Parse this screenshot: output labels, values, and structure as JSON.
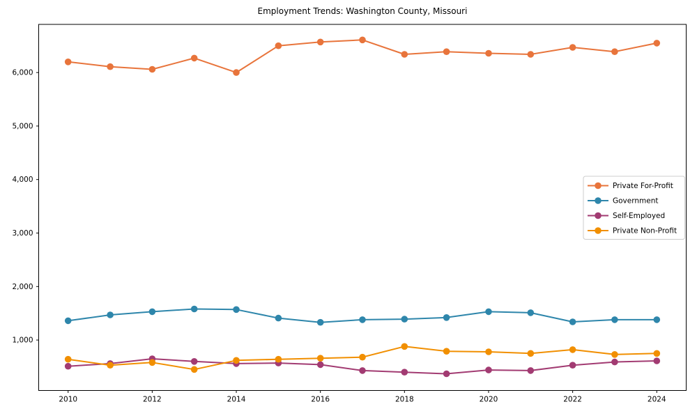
{
  "title": "Employment Trends: Washington County, Missouri",
  "chart_data": {
    "type": "line",
    "title": "Employment Trends: Washington County, Missouri",
    "xlabel": "",
    "ylabel": "",
    "x": [
      2010,
      2011,
      2012,
      2013,
      2014,
      2015,
      2016,
      2017,
      2018,
      2019,
      2020,
      2021,
      2022,
      2023,
      2024
    ],
    "series": [
      {
        "name": "Private For-Profit",
        "color": "#E8743B",
        "values": [
          6200,
          6110,
          6060,
          6270,
          6000,
          6500,
          6570,
          6610,
          6340,
          6390,
          6360,
          6340,
          6470,
          6390,
          6550
        ]
      },
      {
        "name": "Government",
        "color": "#2E86AB",
        "values": [
          1360,
          1470,
          1530,
          1580,
          1570,
          1410,
          1330,
          1380,
          1390,
          1420,
          1530,
          1510,
          1340,
          1380,
          1380
        ]
      },
      {
        "name": "Self-Employed",
        "color": "#A23B72",
        "values": [
          510,
          560,
          650,
          600,
          560,
          570,
          540,
          430,
          400,
          370,
          440,
          430,
          530,
          590,
          610
        ]
      },
      {
        "name": "Private Non-Profit",
        "color": "#F18F01",
        "values": [
          640,
          530,
          580,
          450,
          620,
          640,
          660,
          680,
          880,
          790,
          780,
          750,
          820,
          730,
          750
        ]
      }
    ],
    "xtick_values": [
      2010,
      2012,
      2014,
      2016,
      2018,
      2020,
      2022,
      2024
    ],
    "xtick_labels": [
      "2010",
      "2012",
      "2014",
      "2016",
      "2018",
      "2020",
      "2022",
      "2024"
    ],
    "ytick_values": [
      1000,
      2000,
      3000,
      4000,
      5000,
      6000
    ],
    "ytick_labels": [
      "1,000",
      "2,000",
      "3,000",
      "4,000",
      "5,000",
      "6,000"
    ],
    "xlim": [
      2009.3,
      2024.7
    ],
    "ylim": [
      57,
      6900
    ],
    "grid": false,
    "legend": {
      "position": "center right",
      "labels": [
        "Private For-Profit",
        "Government",
        "Self-Employed",
        "Private Non-Profit"
      ]
    },
    "axis_color": "#000000",
    "background_color": "#ffffff"
  }
}
